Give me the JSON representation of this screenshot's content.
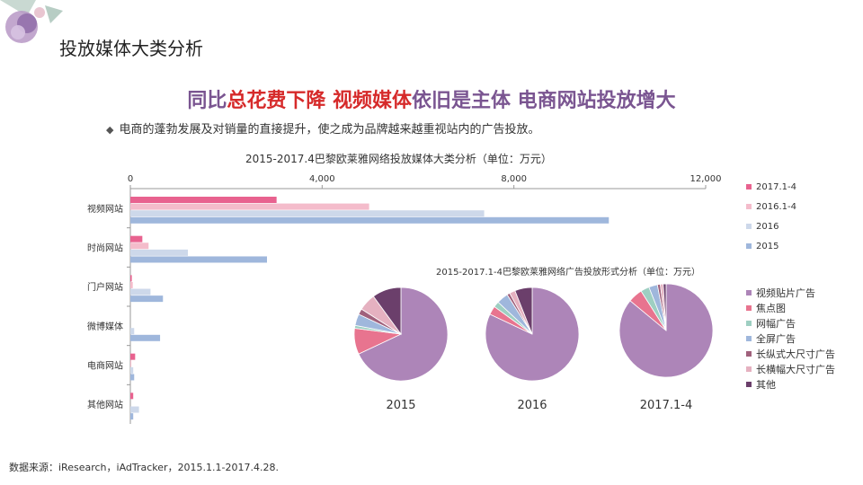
{
  "page": {
    "title": "投放媒体大类分析",
    "headline_parts": [
      {
        "text": "同比",
        "color": "#7a5591"
      },
      {
        "text": "总花费下降 视频媒体",
        "color": "#d62a2a"
      },
      {
        "text": "依旧是主体 电商网站投放增大",
        "color": "#7a5591"
      }
    ],
    "bullet": "电商的蓬勃发展及对销量的直接提升，使之成为品牌越来越重视站内的广告投放。",
    "bullet_icon": "diamond-icon",
    "source": "数据来源：iResearch，iAdTracker，2015.1.1-2017.4.28."
  },
  "colors": {
    "s2017": "#e8628f",
    "s2016": "#f4bccb",
    "s2016full": "#cdd8ea",
    "s2015": "#9fb7dc",
    "pie": [
      "#ad85b8",
      "#e8748f",
      "#9ecfc2",
      "#9fb7dc",
      "#a0617c",
      "#e5b1c0",
      "#6b3f6b"
    ]
  },
  "chart_data": [
    {
      "type": "bar",
      "orientation": "horizontal",
      "title": "2015-2017.4巴黎欧莱雅网络投放媒体大类分析（单位：万元）",
      "categories": [
        "视频网站",
        "时尚网站",
        "门户网站",
        "微博媒体",
        "电商网站",
        "其他网站"
      ],
      "xlim": [
        0,
        12000
      ],
      "xticks": [
        0,
        4000,
        8000,
        12000
      ],
      "xtick_labels": [
        "0",
        "4,000",
        "8,000",
        "12,000"
      ],
      "series": [
        {
          "name": "2017.1-4",
          "color_key": "s2017",
          "values": [
            3050,
            250,
            30,
            0,
            100,
            60
          ]
        },
        {
          "name": "2016.1-4",
          "color_key": "s2016",
          "values": [
            4980,
            380,
            50,
            0,
            20,
            0
          ]
        },
        {
          "name": "2016",
          "color_key": "s2016full",
          "values": [
            7380,
            1200,
            420,
            80,
            60,
            180
          ]
        },
        {
          "name": "2015",
          "color_key": "s2015",
          "values": [
            9980,
            2850,
            680,
            620,
            80,
            60
          ]
        }
      ]
    },
    {
      "type": "pie",
      "title": "2015-2017.1-4巴黎欧莱雅网络广告投放形式分析（单位：万元）",
      "labels": [
        "视频贴片广告",
        "焦点图",
        "网幅广告",
        "全屏广告",
        "长纵式大尺寸广告",
        "长横幅大尺寸广告",
        "其他"
      ],
      "pies": [
        {
          "name": "2015",
          "values": [
            68,
            9,
            1,
            4,
            2,
            6,
            10
          ]
        },
        {
          "name": "2016",
          "values": [
            82,
            3,
            2,
            4,
            1,
            2,
            6
          ]
        },
        {
          "name": "2017.1-4",
          "values": [
            86,
            5,
            3,
            3,
            1,
            1,
            1
          ]
        }
      ]
    }
  ]
}
